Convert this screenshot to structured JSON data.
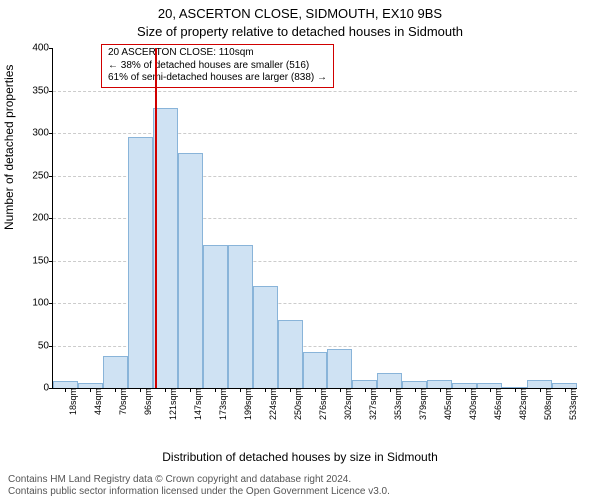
{
  "header": {
    "address": "20, ASCERTON CLOSE, SIDMOUTH, EX10 9BS",
    "subtitle": "Size of property relative to detached houses in Sidmouth"
  },
  "axes": {
    "xlabel": "Distribution of detached houses by size in Sidmouth",
    "ylabel": "Number of detached properties",
    "ylim": [
      0,
      400
    ],
    "ytick_step": 50,
    "background_color": "#ffffff",
    "grid_color": "#cccccc"
  },
  "histogram": {
    "type": "histogram",
    "bar_color": "#cfe2f3",
    "bar_border": "#89b4d9",
    "bar_width_ratio": 1.0,
    "x_category_labels": [
      "18sqm",
      "44sqm",
      "70sqm",
      "96sqm",
      "121sqm",
      "147sqm",
      "173sqm",
      "199sqm",
      "224sqm",
      "250sqm",
      "276sqm",
      "302sqm",
      "327sqm",
      "353sqm",
      "379sqm",
      "405sqm",
      "430sqm",
      "456sqm",
      "482sqm",
      "508sqm",
      "533sqm"
    ],
    "values": [
      8,
      6,
      38,
      295,
      330,
      276,
      168,
      168,
      120,
      80,
      42,
      46,
      10,
      18,
      8,
      10,
      6,
      6,
      0,
      10,
      6
    ]
  },
  "marker": {
    "x_index": 3.6,
    "color": "#d00000"
  },
  "annotation": {
    "border_color": "#d00000",
    "lines": [
      "20 ASCERTON CLOSE: 110sqm",
      "← 38% of detached houses are smaller (516)",
      "61% of semi-detached houses are larger (838) →"
    ]
  },
  "footer": {
    "line1": "Contains HM Land Registry data © Crown copyright and database right 2024.",
    "line2": "Contains public sector information licensed under the Open Government Licence v3.0."
  }
}
